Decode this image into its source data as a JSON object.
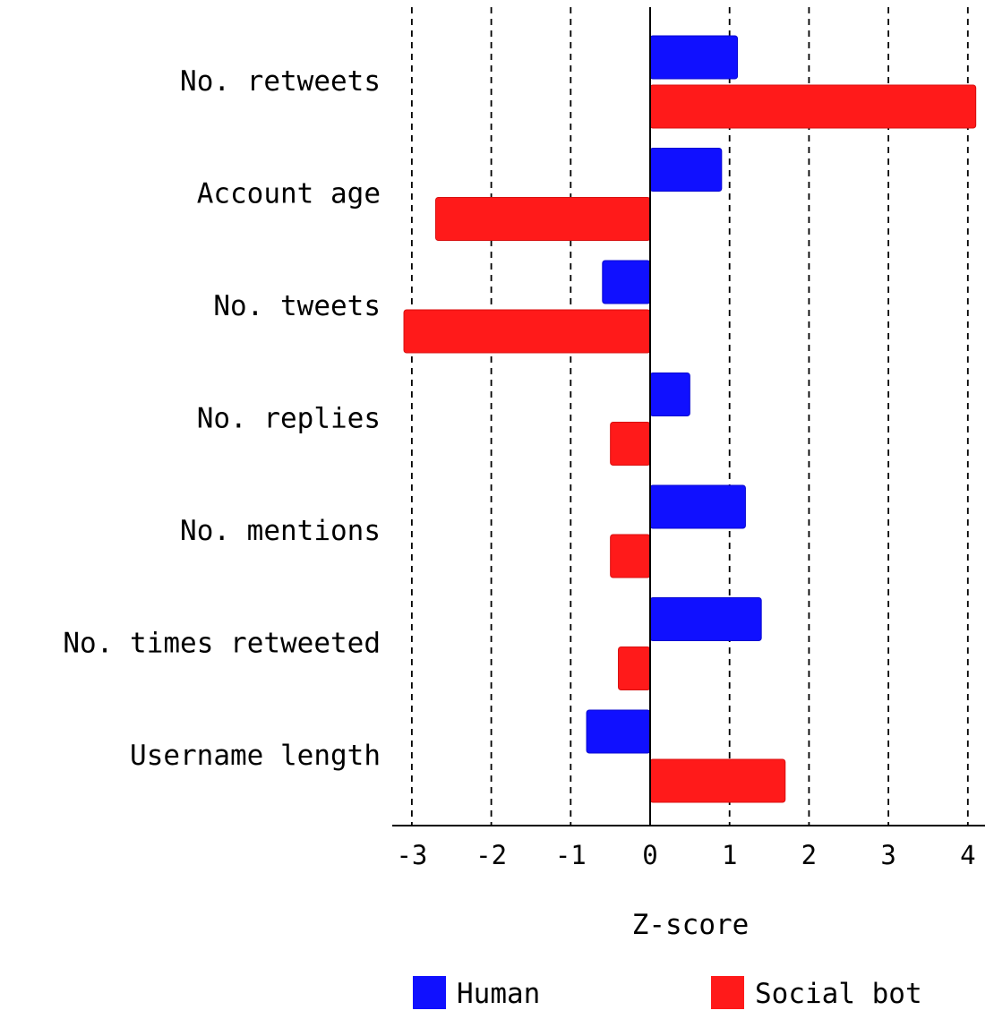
{
  "chart_data": {
    "type": "bar",
    "orientation": "horizontal",
    "categories": [
      "No. retweets",
      "Account age",
      "No. tweets",
      "No. replies",
      "No. mentions",
      "No. times retweeted",
      "Username length"
    ],
    "series": [
      {
        "name": "Human",
        "color": "#1010ff",
        "values": [
          1.1,
          0.9,
          -0.6,
          0.5,
          1.2,
          1.4,
          -0.8
        ]
      },
      {
        "name": "Social bot",
        "color": "#ff1a1a",
        "values": [
          4.1,
          -2.7,
          -3.1,
          -0.5,
          -0.5,
          -0.4,
          1.7
        ]
      }
    ],
    "xlabel": "Z-score",
    "xlim": [
      -3.25,
      4.25
    ],
    "xticks": [
      -3,
      -2,
      -1,
      0,
      1,
      2,
      3,
      4
    ],
    "xtick_labels": [
      "-3",
      "-2",
      "-1",
      "0",
      "1",
      "2",
      "3",
      "4"
    ],
    "grid": "vertical dashed",
    "legend_position": "bottom"
  }
}
